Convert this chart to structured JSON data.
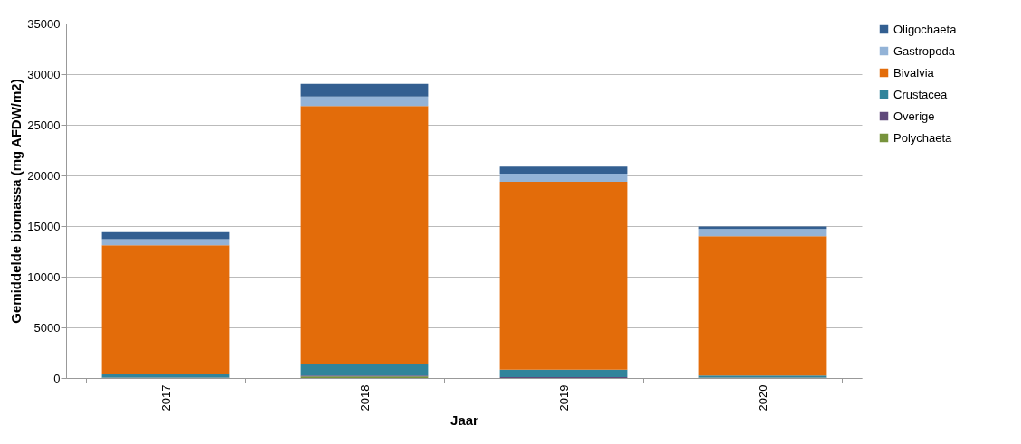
{
  "chart_data": {
    "type": "bar",
    "stacked": true,
    "xlabel": "Jaar",
    "ylabel": "Gemiddelde biomassa (mg AFDW/m2)",
    "categories": [
      "2017",
      "2018",
      "2019",
      "2020"
    ],
    "series": [
      {
        "name": "Polychaeta",
        "color": "#77933c",
        "values": [
          30,
          150,
          null,
          20
        ]
      },
      {
        "name": "Overige",
        "color": "#604a7b",
        "values": [
          20,
          100,
          100,
          30
        ]
      },
      {
        "name": "Crustacea",
        "color": "#31849b",
        "values": [
          300,
          1150,
          720,
          200
        ]
      },
      {
        "name": "Bivalvia",
        "color": "#e36c0a",
        "values": [
          12750,
          25450,
          18550,
          13750
        ]
      },
      {
        "name": "Gastropoda",
        "color": "#93b3d7",
        "values": [
          600,
          950,
          800,
          700
        ]
      },
      {
        "name": "Oligochaeta",
        "color": "#335f91",
        "values": [
          700,
          1250,
          700,
          250
        ]
      }
    ],
    "ylim": [
      0,
      35000
    ],
    "yticks": [
      0,
      5000,
      10000,
      15000,
      20000,
      25000,
      30000,
      35000
    ],
    "grid": "y",
    "legend": "right"
  }
}
